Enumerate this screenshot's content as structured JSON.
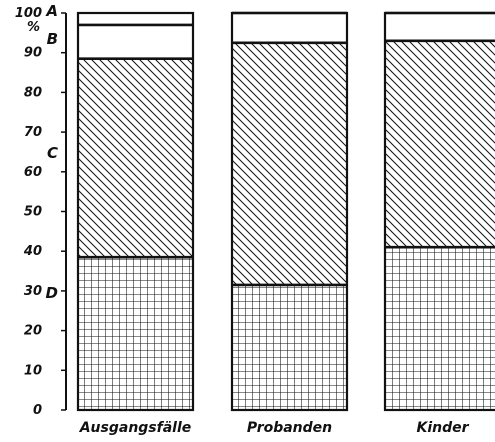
{
  "chart_data": {
    "type": "bar",
    "stacked": true,
    "percent": true,
    "categories": [
      "Ausgangsfälle",
      "Probanden",
      "Kinder"
    ],
    "series": [
      {
        "name": "D",
        "pattern": "grid",
        "values": [
          38.5,
          31.5,
          41
        ]
      },
      {
        "name": "C",
        "pattern": "diagonal",
        "values": [
          50,
          61,
          52
        ]
      },
      {
        "name": "B",
        "pattern": "blank",
        "values": [
          8.5,
          7.5,
          7
        ]
      },
      {
        "name": "A",
        "pattern": "dotted",
        "values": [
          3,
          0,
          0
        ]
      }
    ],
    "ylim": [
      0,
      100
    ],
    "yticks": [
      "0",
      "10",
      "20",
      "30",
      "40",
      "50",
      "60",
      "70",
      "80",
      "90",
      "100"
    ],
    "y_unit": "%",
    "grid": false,
    "legend": "none"
  },
  "colors": {
    "ink": "#111111",
    "background": "#ffffff"
  }
}
